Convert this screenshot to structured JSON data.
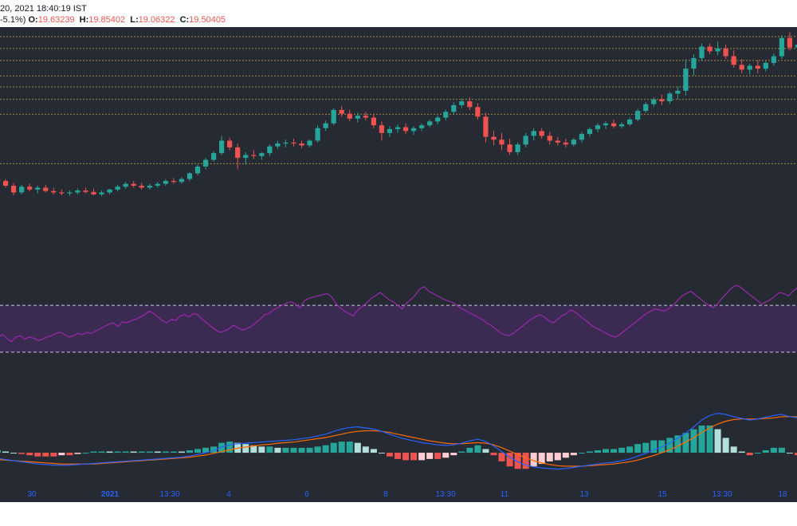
{
  "header": {
    "date_text": "20, 2021 18:40:19 IST",
    "change_text": "-5.1%)",
    "ohlc": [
      {
        "key": "O:",
        "value": "19.63239"
      },
      {
        "key": "H:",
        "value": "19.85402"
      },
      {
        "key": "L:",
        "value": "19.06322"
      },
      {
        "key": "C:",
        "value": "19.50405"
      }
    ]
  },
  "colors": {
    "background": "#262a33",
    "up": "#26a69a",
    "down": "#ef5350",
    "hline": "#c9a44a",
    "rsi_line": "#9c27b0",
    "rsi_band": "#3b2b52",
    "macd": "#2962ff",
    "signal": "#ff6d00",
    "hist_up_strong": "#26a69a",
    "hist_up_weak": "#b2dfdb",
    "hist_down_strong": "#ef5350",
    "hist_down_weak": "#ffcdd2",
    "axis_text": "#2962ff"
  },
  "chart_data": {
    "type": "candlestick",
    "x_ticks": [
      "30",
      "2021",
      "13:30",
      "4",
      "6",
      "8",
      "13:30",
      "11",
      "13",
      "15",
      "13:30",
      "18"
    ],
    "ylim": [
      17.0,
      22.0
    ],
    "horizontal_levels": [
      21.87,
      21.62,
      21.37,
      21.05,
      20.82,
      20.56,
      20.25,
      19.22
    ],
    "candles": [
      [
        18.92,
        19.0,
        18.84,
        18.86
      ],
      [
        18.86,
        18.9,
        18.72,
        18.76
      ],
      [
        18.76,
        18.82,
        18.56,
        18.62
      ],
      [
        18.62,
        18.78,
        18.58,
        18.74
      ],
      [
        18.74,
        18.8,
        18.64,
        18.68
      ],
      [
        18.68,
        18.76,
        18.6,
        18.72
      ],
      [
        18.72,
        18.78,
        18.62,
        18.65
      ],
      [
        18.65,
        18.72,
        18.58,
        18.62
      ],
      [
        18.62,
        18.68,
        18.56,
        18.6
      ],
      [
        18.6,
        18.66,
        18.55,
        18.62
      ],
      [
        18.62,
        18.7,
        18.58,
        18.66
      ],
      [
        18.66,
        18.72,
        18.6,
        18.63
      ],
      [
        18.63,
        18.7,
        18.56,
        18.58
      ],
      [
        18.58,
        18.66,
        18.54,
        18.62
      ],
      [
        18.62,
        18.7,
        18.58,
        18.68
      ],
      [
        18.68,
        18.78,
        18.64,
        18.74
      ],
      [
        18.74,
        18.84,
        18.7,
        18.8
      ],
      [
        18.8,
        18.86,
        18.72,
        18.76
      ],
      [
        18.76,
        18.82,
        18.68,
        18.72
      ],
      [
        18.72,
        18.8,
        18.68,
        18.76
      ],
      [
        18.76,
        18.84,
        18.72,
        18.8
      ],
      [
        18.8,
        18.9,
        18.76,
        18.86
      ],
      [
        18.86,
        18.92,
        18.8,
        18.84
      ],
      [
        18.84,
        18.94,
        18.8,
        18.9
      ],
      [
        18.9,
        19.05,
        18.86,
        19.02
      ],
      [
        19.02,
        19.2,
        18.98,
        19.16
      ],
      [
        19.16,
        19.34,
        19.1,
        19.3
      ],
      [
        19.3,
        19.48,
        19.26,
        19.44
      ],
      [
        19.44,
        19.8,
        19.4,
        19.7
      ],
      [
        19.7,
        19.76,
        19.5,
        19.56
      ],
      [
        19.56,
        19.64,
        19.1,
        19.34
      ],
      [
        19.34,
        19.46,
        19.2,
        19.4
      ],
      [
        19.4,
        19.5,
        19.32,
        19.38
      ],
      [
        19.38,
        19.46,
        19.3,
        19.44
      ],
      [
        19.44,
        19.62,
        19.38,
        19.58
      ],
      [
        19.58,
        19.7,
        19.52,
        19.64
      ],
      [
        19.64,
        19.72,
        19.56,
        19.66
      ],
      [
        19.66,
        19.74,
        19.58,
        19.64
      ],
      [
        19.64,
        19.7,
        19.54,
        19.6
      ],
      [
        19.6,
        19.72,
        19.56,
        19.7
      ],
      [
        19.7,
        20.02,
        19.66,
        19.96
      ],
      [
        19.96,
        20.12,
        19.9,
        20.06
      ],
      [
        20.06,
        20.38,
        20.02,
        20.34
      ],
      [
        20.34,
        20.42,
        20.2,
        20.26
      ],
      [
        20.26,
        20.34,
        20.1,
        20.16
      ],
      [
        20.16,
        20.28,
        20.08,
        20.22
      ],
      [
        20.22,
        20.3,
        20.12,
        20.18
      ],
      [
        20.18,
        20.26,
        19.96,
        20.02
      ],
      [
        20.02,
        20.1,
        19.7,
        19.86
      ],
      [
        19.86,
        20.0,
        19.78,
        19.94
      ],
      [
        19.94,
        20.04,
        19.86,
        19.98
      ],
      [
        19.98,
        20.06,
        19.84,
        19.9
      ],
      [
        19.9,
        20.0,
        19.82,
        19.96
      ],
      [
        19.96,
        20.06,
        19.9,
        20.02
      ],
      [
        20.02,
        20.14,
        19.98,
        20.1
      ],
      [
        20.1,
        20.22,
        20.04,
        20.18
      ],
      [
        20.18,
        20.34,
        20.12,
        20.3
      ],
      [
        20.3,
        20.5,
        20.24,
        20.44
      ],
      [
        20.44,
        20.58,
        20.38,
        20.52
      ],
      [
        20.52,
        20.6,
        20.34,
        20.4
      ],
      [
        20.4,
        20.48,
        20.14,
        20.2
      ],
      [
        20.2,
        20.28,
        19.66,
        19.78
      ],
      [
        19.78,
        19.9,
        19.6,
        19.72
      ],
      [
        19.72,
        19.86,
        19.5,
        19.62
      ],
      [
        19.62,
        19.74,
        19.4,
        19.46
      ],
      [
        19.46,
        19.66,
        19.4,
        19.62
      ],
      [
        19.62,
        19.86,
        19.56,
        19.8
      ],
      [
        19.8,
        19.96,
        19.7,
        19.9
      ],
      [
        19.9,
        19.96,
        19.74,
        19.8
      ],
      [
        19.8,
        19.88,
        19.62,
        19.7
      ],
      [
        19.7,
        19.78,
        19.6,
        19.66
      ],
      [
        19.66,
        19.74,
        19.56,
        19.62
      ],
      [
        19.62,
        19.76,
        19.58,
        19.72
      ],
      [
        19.72,
        19.88,
        19.66,
        19.84
      ],
      [
        19.84,
        19.98,
        19.78,
        19.94
      ],
      [
        19.94,
        20.06,
        19.88,
        20.02
      ],
      [
        20.02,
        20.1,
        19.94,
        20.06
      ],
      [
        20.06,
        20.14,
        19.96,
        20.0
      ],
      [
        20.0,
        20.08,
        19.96,
        20.04
      ],
      [
        20.04,
        20.18,
        20.0,
        20.14
      ],
      [
        20.14,
        20.36,
        20.1,
        20.32
      ],
      [
        20.32,
        20.5,
        20.28,
        20.46
      ],
      [
        20.46,
        20.6,
        20.4,
        20.56
      ],
      [
        20.56,
        20.66,
        20.44,
        20.52
      ],
      [
        20.52,
        20.72,
        20.46,
        20.68
      ],
      [
        20.68,
        20.82,
        20.56,
        20.74
      ],
      [
        20.74,
        21.4,
        20.64,
        21.2
      ],
      [
        21.2,
        21.5,
        21.06,
        21.42
      ],
      [
        21.42,
        21.72,
        21.36,
        21.66
      ],
      [
        21.66,
        21.72,
        21.5,
        21.56
      ],
      [
        21.56,
        21.76,
        21.48,
        21.62
      ],
      [
        21.62,
        21.7,
        21.4,
        21.46
      ],
      [
        21.46,
        21.58,
        21.22,
        21.28
      ],
      [
        21.28,
        21.4,
        21.1,
        21.18
      ],
      [
        21.18,
        21.3,
        21.08,
        21.26
      ],
      [
        21.26,
        21.38,
        21.1,
        21.2
      ],
      [
        21.2,
        21.36,
        21.14,
        21.32
      ],
      [
        21.32,
        21.52,
        21.26,
        21.46
      ],
      [
        21.46,
        21.9,
        21.4,
        21.84
      ],
      [
        21.84,
        21.96,
        21.58,
        21.64
      ],
      [
        21.64,
        21.86,
        21.56,
        21.7
      ]
    ],
    "rsi": {
      "upper": 70,
      "lower": 30,
      "ylim": [
        0,
        100
      ],
      "values": [
        44,
        43,
        45,
        42,
        39,
        43,
        44,
        41,
        43,
        42,
        40,
        41,
        43,
        44,
        46,
        47,
        45,
        43,
        44,
        46,
        45,
        47,
        46,
        48,
        50,
        52,
        54,
        55,
        52,
        56,
        55,
        57,
        58,
        60,
        62,
        65,
        63,
        60,
        57,
        55,
        58,
        57,
        61,
        62,
        60,
        63,
        62,
        58,
        55,
        52,
        49,
        47,
        48,
        50,
        53,
        51,
        49,
        50,
        52,
        55,
        58,
        62,
        63,
        66,
        68,
        70,
        72,
        73,
        71,
        68,
        74,
        76,
        77,
        78,
        79,
        80,
        78,
        72,
        68,
        65,
        63,
        61,
        66,
        69,
        72,
        76,
        78,
        81,
        78,
        75,
        73,
        70,
        67,
        72,
        75,
        79,
        84,
        86,
        82,
        80,
        78,
        76,
        74,
        73,
        71,
        68,
        66,
        64,
        62,
        60,
        58,
        55,
        53,
        50,
        47,
        45,
        44,
        46,
        49,
        52,
        55,
        58,
        60,
        62,
        60,
        57,
        55,
        58,
        61,
        63,
        66,
        64,
        61,
        58,
        55,
        52,
        50,
        48,
        46,
        44,
        43,
        45,
        48,
        51,
        54,
        57,
        60,
        63,
        65,
        67,
        66,
        65,
        67,
        70,
        74,
        78,
        80,
        82,
        79,
        76,
        73,
        70,
        68,
        71,
        76,
        80,
        84,
        87,
        86,
        83,
        80,
        77,
        74,
        71,
        73,
        75,
        78,
        81,
        80,
        78,
        82,
        85,
        84
      ]
    },
    "macd": {
      "ylim": [
        -1,
        1
      ],
      "macd_line": [
        -0.1,
        -0.12,
        -0.14,
        -0.16,
        -0.18,
        -0.2,
        -0.21,
        -0.22,
        -0.22,
        -0.22,
        -0.21,
        -0.2,
        -0.19,
        -0.18,
        -0.17,
        -0.16,
        -0.15,
        -0.14,
        -0.13,
        -0.12,
        -0.11,
        -0.1,
        -0.09,
        -0.08,
        -0.06,
        -0.03,
        0.0,
        0.04,
        0.1,
        0.14,
        0.16,
        0.17,
        0.18,
        0.19,
        0.2,
        0.21,
        0.22,
        0.23,
        0.25,
        0.27,
        0.3,
        0.33,
        0.38,
        0.42,
        0.45,
        0.46,
        0.44,
        0.42,
        0.38,
        0.33,
        0.28,
        0.24,
        0.21,
        0.18,
        0.16,
        0.14,
        0.13,
        0.14,
        0.17,
        0.21,
        0.24,
        0.2,
        0.12,
        0.02,
        -0.08,
        -0.16,
        -0.22,
        -0.25,
        -0.27,
        -0.28,
        -0.29,
        -0.28,
        -0.26,
        -0.24,
        -0.22,
        -0.2,
        -0.18,
        -0.17,
        -0.14,
        -0.11,
        -0.06,
        -0.01,
        0.05,
        0.1,
        0.17,
        0.26,
        0.35,
        0.46,
        0.58,
        0.66,
        0.7,
        0.68,
        0.64,
        0.61,
        0.58,
        0.6,
        0.63,
        0.66,
        0.68,
        0.64,
        0.62
      ],
      "signal_line": [
        -0.12,
        -0.13,
        -0.14,
        -0.15,
        -0.16,
        -0.17,
        -0.18,
        -0.19,
        -0.2,
        -0.2,
        -0.2,
        -0.2,
        -0.2,
        -0.19,
        -0.18,
        -0.17,
        -0.16,
        -0.15,
        -0.14,
        -0.13,
        -0.12,
        -0.11,
        -0.1,
        -0.09,
        -0.08,
        -0.06,
        -0.04,
        -0.01,
        0.02,
        0.05,
        0.08,
        0.1,
        0.12,
        0.14,
        0.15,
        0.17,
        0.18,
        0.19,
        0.21,
        0.23,
        0.25,
        0.27,
        0.3,
        0.33,
        0.36,
        0.38,
        0.39,
        0.39,
        0.38,
        0.36,
        0.33,
        0.3,
        0.27,
        0.24,
        0.21,
        0.19,
        0.17,
        0.16,
        0.16,
        0.17,
        0.18,
        0.17,
        0.14,
        0.09,
        0.03,
        -0.03,
        -0.09,
        -0.14,
        -0.18,
        -0.21,
        -0.23,
        -0.24,
        -0.24,
        -0.24,
        -0.23,
        -0.22,
        -0.21,
        -0.2,
        -0.18,
        -0.16,
        -0.13,
        -0.09,
        -0.05,
        0.0,
        0.05,
        0.12,
        0.19,
        0.27,
        0.36,
        0.44,
        0.51,
        0.56,
        0.59,
        0.6,
        0.6,
        0.6,
        0.61,
        0.62,
        0.64,
        0.64,
        0.64
      ]
    }
  }
}
